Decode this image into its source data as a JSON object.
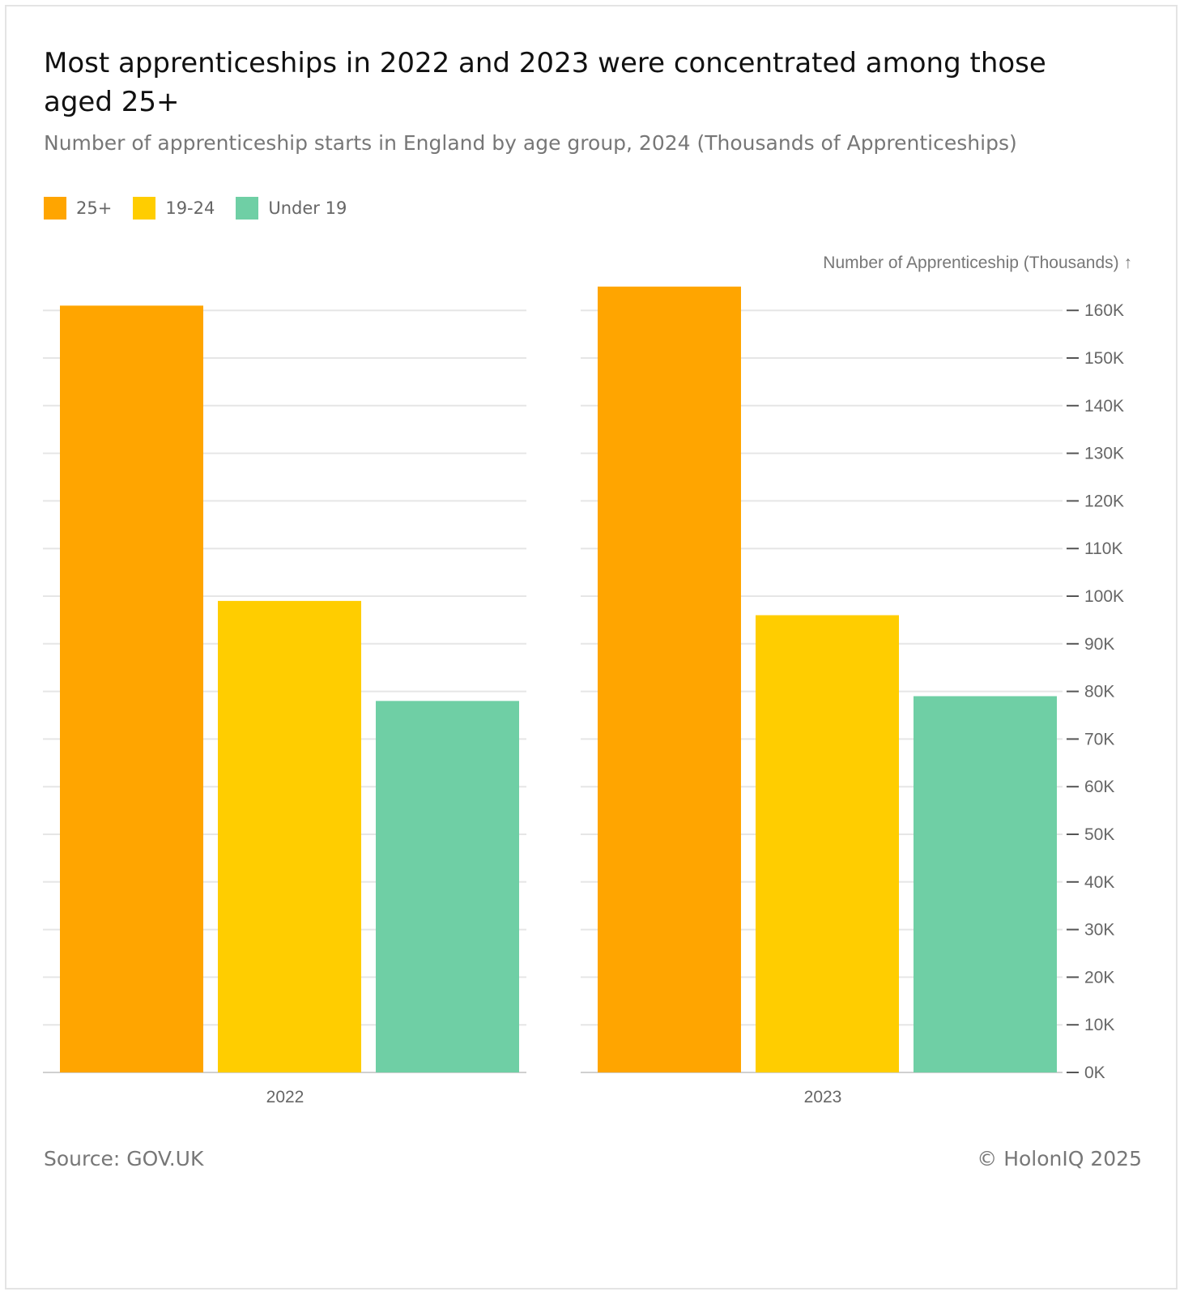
{
  "chart_data": {
    "type": "bar",
    "title": "Most apprenticeships in 2022 and 2023 were concentrated among those aged 25+",
    "subtitle": "Number of apprenticeship starts in England by age group, 2024 (Thousands of Apprenticeships)",
    "categories": [
      "2022",
      "2023"
    ],
    "series": [
      {
        "name": "25+",
        "color": "#FFA500",
        "values": [
          161,
          165
        ]
      },
      {
        "name": "19-24",
        "color": "#FFCD00",
        "values": [
          99,
          96
        ]
      },
      {
        "name": "Under 19",
        "color": "#6FCFA5",
        "values": [
          78,
          79
        ]
      }
    ],
    "ylabel": "Number of Apprenticeship (Thousands) ↑",
    "ylim": [
      0,
      160
    ],
    "yticks": [
      0,
      10,
      20,
      30,
      40,
      50,
      60,
      70,
      80,
      90,
      100,
      110,
      120,
      130,
      140,
      150,
      160
    ],
    "ytick_labels": [
      "0K",
      "10K",
      "20K",
      "30K",
      "40K",
      "50K",
      "60K",
      "70K",
      "80K",
      "90K",
      "100K",
      "110K",
      "120K",
      "130K",
      "140K",
      "150K",
      "160K"
    ],
    "grid": true,
    "layout": "faceted by year, shared y-axis on right",
    "legend_position": "top-left"
  },
  "footer": {
    "source": "Source: GOV.UK",
    "copyright": "© HolonIQ 2025"
  }
}
